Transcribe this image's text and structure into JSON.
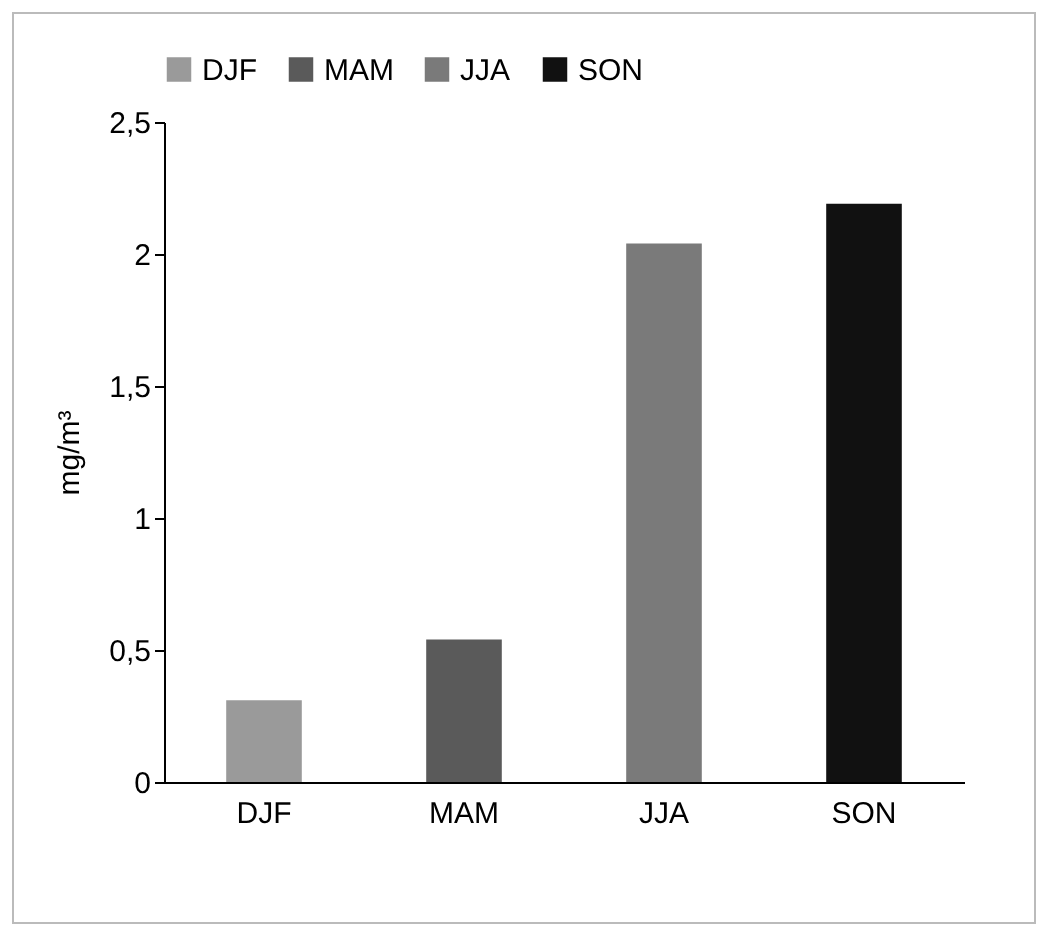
{
  "chart_data": {
    "type": "bar",
    "ylabel": "mg/m³",
    "categories": [
      "DJF",
      "MAM",
      "JJA",
      "SON"
    ],
    "series": [
      {
        "name": "DJF",
        "color": "#9a9a9a",
        "values": [
          0.31,
          null,
          null,
          null
        ]
      },
      {
        "name": "MAM",
        "color": "#5a5a5a",
        "values": [
          null,
          0.54,
          null,
          null
        ]
      },
      {
        "name": "JJA",
        "color": "#7a7a7a",
        "values": [
          null,
          null,
          2.04,
          null
        ]
      },
      {
        "name": "SON",
        "color": "#111111",
        "values": [
          null,
          null,
          null,
          2.19
        ]
      }
    ],
    "ylim": [
      0,
      2.5
    ],
    "yticks": [
      0,
      {
        "value": 0.5,
        "label": "0,5"
      },
      1,
      {
        "value": 1.5,
        "label": "1,5"
      },
      2,
      {
        "value": 2.5,
        "label": "2,5"
      }
    ],
    "grid": false,
    "legend": "top"
  }
}
